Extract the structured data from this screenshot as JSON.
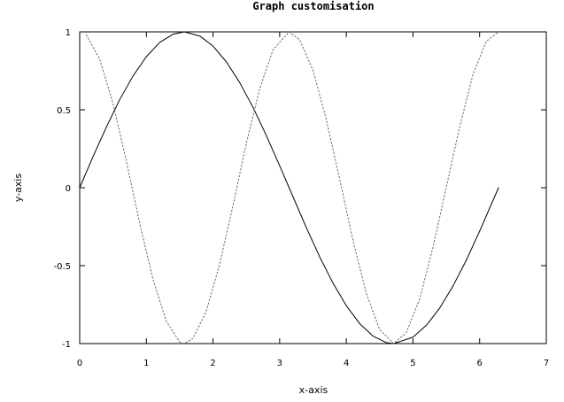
{
  "chart_data": {
    "type": "line",
    "title": "Graph customisation",
    "xlabel": "x-axis",
    "ylabel": "y-axis",
    "xlim": [
      0,
      7
    ],
    "ylim": [
      -1,
      1
    ],
    "x_ticks": [
      0,
      1,
      2,
      3,
      4,
      5,
      6,
      7
    ],
    "x_tick_labels": [
      "0",
      "1",
      "2",
      "3",
      "4",
      "5",
      "6",
      "7"
    ],
    "y_ticks": [
      1,
      0.5,
      0,
      -0.5,
      -1
    ],
    "y_tick_labels": [
      "1",
      "0.5",
      "0",
      "-0.5",
      "-1"
    ],
    "grid": false,
    "legend": "none",
    "series": [
      {
        "x": [
          0,
          0.2,
          0.4,
          0.6,
          0.8,
          1.0,
          1.2,
          1.4,
          1.5708,
          1.8,
          2.0,
          2.2,
          2.4,
          2.6,
          2.8,
          3.0,
          3.1416,
          3.4,
          3.6,
          3.8,
          4.0,
          4.2,
          4.4,
          4.6,
          4.7124,
          5.0,
          5.2,
          5.4,
          5.6,
          5.8,
          6.0,
          6.2832
        ],
        "values": [
          0,
          0.199,
          0.389,
          0.565,
          0.717,
          0.841,
          0.932,
          0.985,
          1,
          0.974,
          0.909,
          0.808,
          0.675,
          0.516,
          0.335,
          0.141,
          0,
          -0.256,
          -0.443,
          -0.612,
          -0.757,
          -0.872,
          -0.952,
          -0.994,
          -1,
          -0.959,
          -0.883,
          -0.773,
          -0.631,
          -0.465,
          -0.279,
          0
        ],
        "color": "#000000",
        "style": "solid"
      },
      {
        "x": [
          0.1,
          0.3,
          0.5,
          0.7,
          0.9,
          1.1,
          1.3,
          1.5,
          1.5708,
          1.7,
          1.9,
          2.1,
          2.3,
          2.5,
          2.7,
          2.9,
          3.1416,
          3.3,
          3.5,
          3.7,
          3.9,
          4.1,
          4.3,
          4.5,
          4.7124,
          4.9,
          5.1,
          5.3,
          5.5,
          5.7,
          5.9,
          6.1,
          6.2832
        ],
        "values": [
          0.98,
          0.825,
          0.54,
          0.17,
          -0.227,
          -0.589,
          -0.857,
          -0.99,
          -1,
          -0.967,
          -0.791,
          -0.49,
          -0.114,
          0.284,
          0.635,
          0.885,
          1,
          0.95,
          0.754,
          0.437,
          0.056,
          -0.339,
          -0.679,
          -0.911,
          -1,
          -0.93,
          -0.714,
          -0.383,
          0.004,
          0.389,
          0.727,
          0.939,
          1
        ],
        "color": "#666666",
        "style": "dotted"
      }
    ]
  }
}
